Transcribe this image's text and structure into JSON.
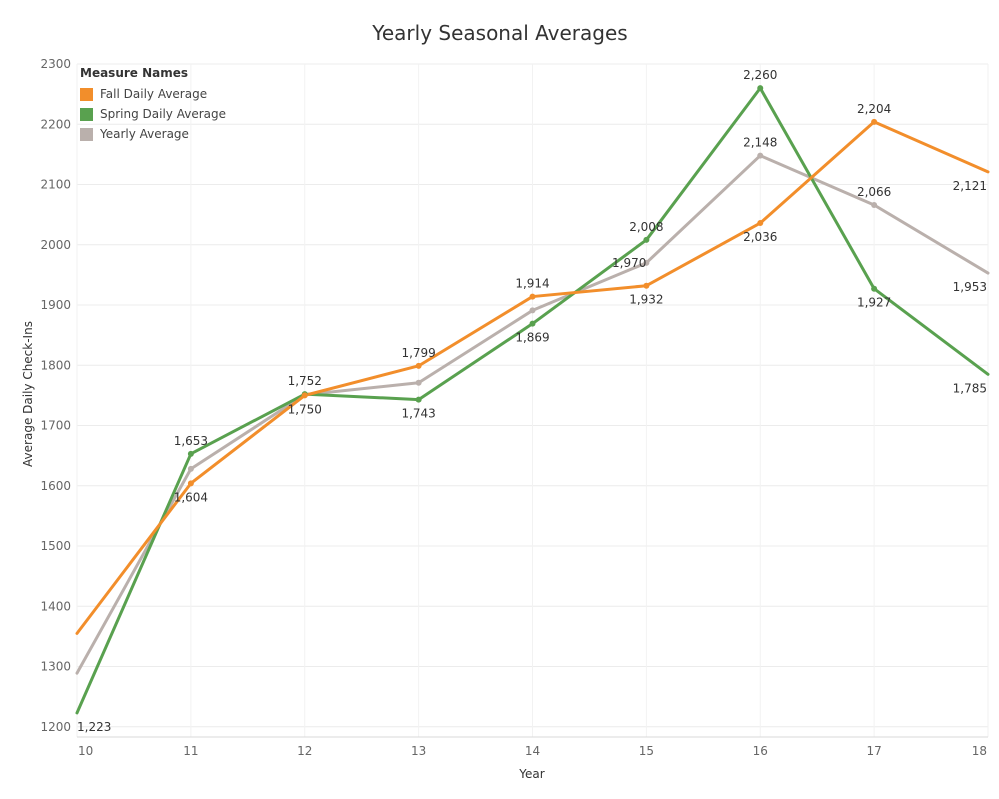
{
  "chart_data": {
    "type": "line",
    "title": "Yearly Seasonal Averages",
    "xlabel": "Year",
    "ylabel": "Average Daily Check-Ins",
    "x": [
      10,
      11,
      12,
      13,
      14,
      15,
      16,
      17,
      18
    ],
    "xlim": [
      10,
      18
    ],
    "ylim": [
      1183,
      2300
    ],
    "y_ticks": [
      1200,
      1300,
      1400,
      1500,
      1600,
      1700,
      1800,
      1900,
      2000,
      2100,
      2200,
      2300
    ],
    "grid": true,
    "legend": {
      "title": "Measure Names",
      "position": "top-left"
    },
    "series": [
      {
        "name": "Fall Daily Average",
        "color": "#F28E2B",
        "values": [
          1355,
          1604,
          1750,
          1799,
          1914,
          1932,
          2036,
          2204,
          2121
        ],
        "labels": [
          "",
          "1,604",
          "1,750",
          "1,799",
          "1,914",
          "1,932",
          "2,036",
          "2,204",
          "2,121"
        ],
        "label_pos": [
          "",
          "below",
          "below",
          "above",
          "above",
          "below",
          "below",
          "above",
          "below"
        ]
      },
      {
        "name": "Spring Daily Average",
        "color": "#59A14F",
        "values": [
          1223,
          1653,
          1752,
          1743,
          1869,
          2008,
          2260,
          1927,
          1785
        ],
        "labels": [
          "1,223",
          "1,653",
          "1,752",
          "1,743",
          "1,869",
          "2,008",
          "2,260",
          "1,927",
          "1,785"
        ],
        "label_pos": [
          "below",
          "above",
          "above",
          "below",
          "below",
          "above",
          "above",
          "below",
          "below"
        ]
      },
      {
        "name": "Yearly Average",
        "color": "#BAB0AC",
        "values": [
          1289,
          1628,
          1751,
          1771,
          1891,
          1970,
          2148,
          2066,
          1953
        ],
        "labels": [
          "",
          "",
          "",
          "",
          "",
          "1,970",
          "2,148",
          "2,066",
          "1,953"
        ],
        "label_pos": [
          "",
          "",
          "",
          "",
          "",
          "left",
          "above",
          "above",
          "below"
        ]
      }
    ]
  }
}
